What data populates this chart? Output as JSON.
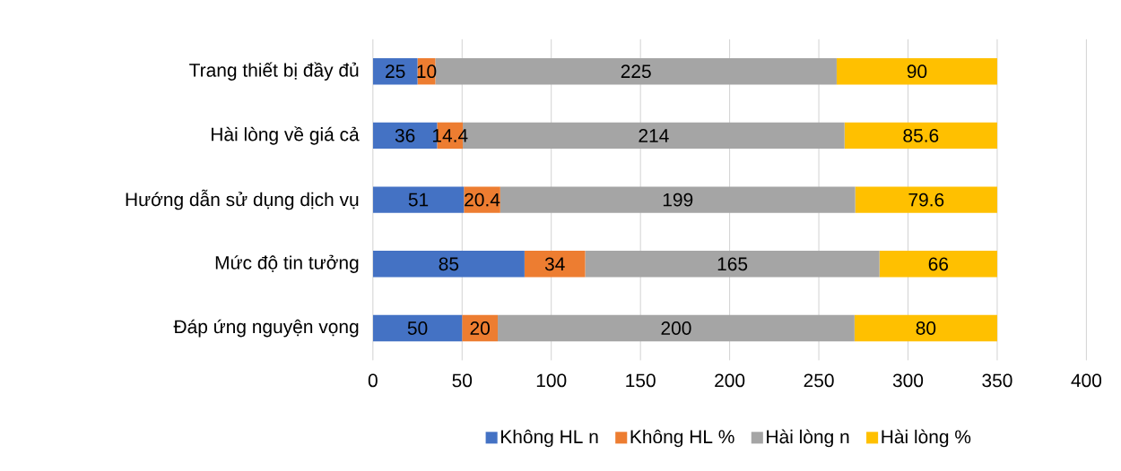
{
  "chart_data": {
    "type": "bar",
    "orientation": "horizontal",
    "stacked": true,
    "categories": [
      "Trang thiết bị đầy đủ",
      "Hài lòng về giá cả",
      "Hướng dẫn sử dụng dịch vụ",
      "Mức độ tin tưởng",
      "Đáp ứng nguyện vọng"
    ],
    "series": [
      {
        "name": "Không HL n",
        "color": "#4472c4",
        "values": [
          25,
          36,
          51,
          85,
          50
        ]
      },
      {
        "name": "Không HL %",
        "color": "#ed7d31",
        "values": [
          10,
          14.4,
          20.4,
          34,
          20
        ]
      },
      {
        "name": "Hài lòng n",
        "color": "#a5a5a5",
        "values": [
          225,
          214,
          199,
          165,
          200
        ]
      },
      {
        "name": "Hài lòng %",
        "color": "#ffc000",
        "values": [
          90,
          85.6,
          79.6,
          66,
          80
        ]
      }
    ],
    "xlim": [
      0,
      400
    ],
    "xticks": [
      0,
      50,
      100,
      150,
      200,
      250,
      300,
      350,
      400
    ],
    "grid": "x",
    "legend": "bottom",
    "data_labels": true
  }
}
